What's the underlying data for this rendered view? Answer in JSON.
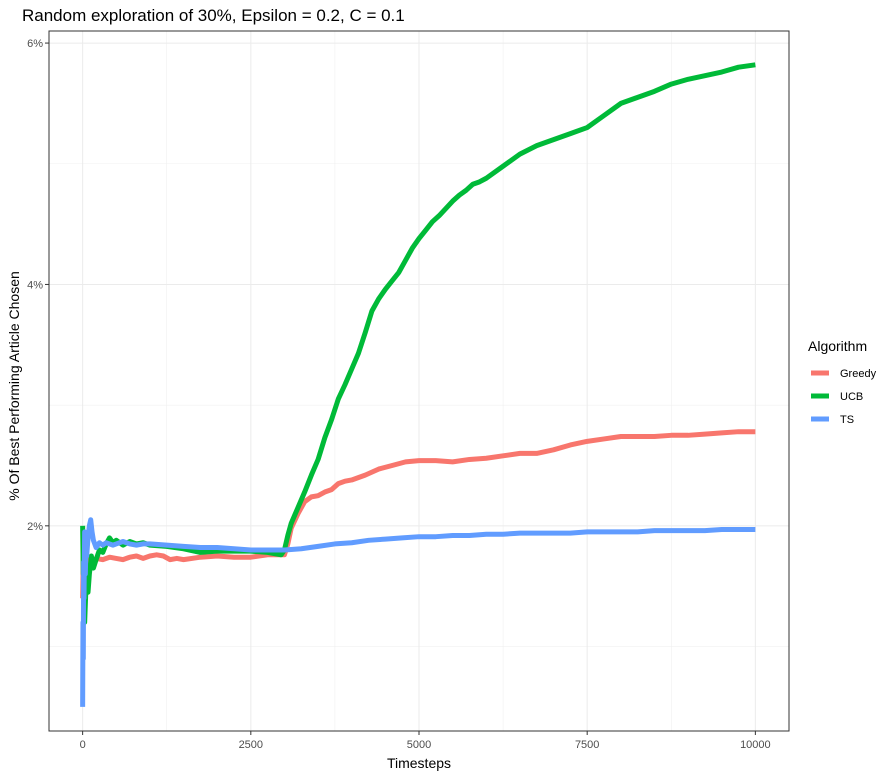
{
  "chart_data": {
    "type": "line",
    "title": "Random exploration of 30%, Epsilon = 0.2, C = 0.1",
    "xlabel": "Timesteps",
    "ylabel": "% Of Best Performing Article Chosen",
    "xlim": [
      -500,
      10500
    ],
    "ylim": [
      0.3,
      6.1
    ],
    "x_ticks": [
      0,
      2500,
      5000,
      7500,
      10000
    ],
    "x_tick_labels": [
      "0",
      "2500",
      "5000",
      "7500",
      "10000"
    ],
    "y_ticks": [
      2,
      4,
      6
    ],
    "y_tick_labels": [
      "2%",
      "4%",
      "6%"
    ],
    "grid": true,
    "legend": {
      "title": "Algorithm",
      "position": "right"
    },
    "series": [
      {
        "name": "Greedy",
        "color": "#F8766D",
        "x": [
          0,
          10,
          20,
          40,
          60,
          100,
          150,
          200,
          300,
          400,
          500,
          600,
          700,
          800,
          900,
          1000,
          1100,
          1200,
          1300,
          1400,
          1500,
          1750,
          2000,
          2250,
          2500,
          2750,
          3000,
          3050,
          3100,
          3200,
          3300,
          3400,
          3500,
          3600,
          3700,
          3800,
          3900,
          4000,
          4200,
          4400,
          4600,
          4800,
          5000,
          5250,
          5500,
          5750,
          6000,
          6250,
          6500,
          6750,
          7000,
          7250,
          7500,
          7750,
          8000,
          8250,
          8500,
          8750,
          9000,
          9250,
          9500,
          9750,
          10000
        ],
        "y": [
          1.4,
          1.75,
          1.6,
          1.78,
          1.7,
          1.74,
          1.71,
          1.73,
          1.72,
          1.74,
          1.73,
          1.72,
          1.74,
          1.75,
          1.73,
          1.75,
          1.76,
          1.75,
          1.72,
          1.73,
          1.72,
          1.74,
          1.75,
          1.74,
          1.74,
          1.76,
          1.76,
          1.85,
          1.98,
          2.1,
          2.2,
          2.24,
          2.25,
          2.28,
          2.3,
          2.35,
          2.37,
          2.38,
          2.42,
          2.47,
          2.5,
          2.53,
          2.54,
          2.54,
          2.53,
          2.55,
          2.56,
          2.58,
          2.6,
          2.6,
          2.63,
          2.67,
          2.7,
          2.72,
          2.74,
          2.74,
          2.74,
          2.75,
          2.75,
          2.76,
          2.77,
          2.78,
          2.78
        ]
      },
      {
        "name": "UCB",
        "color": "#00BA38",
        "x": [
          0,
          10,
          20,
          30,
          50,
          80,
          100,
          130,
          160,
          200,
          250,
          300,
          350,
          400,
          450,
          500,
          600,
          700,
          800,
          900,
          1000,
          1250,
          1500,
          1750,
          2000,
          2250,
          2500,
          2750,
          2950,
          3000,
          3050,
          3100,
          3200,
          3300,
          3400,
          3500,
          3600,
          3700,
          3800,
          3900,
          4000,
          4100,
          4200,
          4300,
          4400,
          4500,
          4600,
          4700,
          4800,
          4900,
          5000,
          5100,
          5200,
          5300,
          5400,
          5500,
          5600,
          5700,
          5800,
          5900,
          6000,
          6250,
          6500,
          6750,
          7000,
          7250,
          7500,
          7750,
          8000,
          8250,
          8500,
          8750,
          9000,
          9250,
          9500,
          9750,
          10000
        ],
        "y": [
          2.0,
          1.6,
          1.85,
          1.2,
          1.5,
          1.45,
          1.6,
          1.75,
          1.65,
          1.72,
          1.8,
          1.78,
          1.85,
          1.9,
          1.86,
          1.88,
          1.84,
          1.87,
          1.85,
          1.86,
          1.84,
          1.83,
          1.81,
          1.78,
          1.79,
          1.79,
          1.79,
          1.78,
          1.76,
          1.8,
          1.92,
          2.02,
          2.15,
          2.28,
          2.42,
          2.55,
          2.73,
          2.88,
          3.05,
          3.17,
          3.3,
          3.43,
          3.6,
          3.78,
          3.88,
          3.96,
          4.03,
          4.1,
          4.2,
          4.3,
          4.38,
          4.45,
          4.52,
          4.57,
          4.63,
          4.69,
          4.74,
          4.78,
          4.83,
          4.85,
          4.88,
          4.98,
          5.08,
          5.15,
          5.2,
          5.25,
          5.3,
          5.4,
          5.5,
          5.55,
          5.6,
          5.66,
          5.7,
          5.73,
          5.76,
          5.8,
          5.82
        ]
      },
      {
        "name": "TS",
        "color": "#619CFF",
        "x": [
          0,
          5,
          10,
          15,
          20,
          30,
          40,
          50,
          60,
          80,
          100,
          120,
          140,
          160,
          180,
          200,
          250,
          300,
          350,
          400,
          450,
          500,
          600,
          700,
          800,
          900,
          1000,
          1250,
          1500,
          1750,
          2000,
          2250,
          2500,
          2750,
          3000,
          3250,
          3500,
          3750,
          4000,
          4250,
          4500,
          4750,
          5000,
          5250,
          5500,
          5750,
          6000,
          6250,
          6500,
          6750,
          7000,
          7250,
          7500,
          7750,
          8000,
          8250,
          8500,
          8750,
          9000,
          9250,
          9500,
          9750,
          10000
        ],
        "y": [
          0.5,
          1.2,
          0.9,
          1.7,
          1.4,
          1.95,
          1.6,
          1.85,
          1.75,
          1.9,
          2.0,
          2.05,
          1.95,
          1.88,
          1.85,
          1.82,
          1.86,
          1.84,
          1.86,
          1.85,
          1.84,
          1.85,
          1.87,
          1.85,
          1.84,
          1.85,
          1.85,
          1.84,
          1.83,
          1.82,
          1.82,
          1.81,
          1.8,
          1.8,
          1.8,
          1.81,
          1.83,
          1.85,
          1.86,
          1.88,
          1.89,
          1.9,
          1.91,
          1.91,
          1.92,
          1.92,
          1.93,
          1.93,
          1.94,
          1.94,
          1.94,
          1.94,
          1.95,
          1.95,
          1.95,
          1.95,
          1.96,
          1.96,
          1.96,
          1.96,
          1.97,
          1.97,
          1.97
        ]
      }
    ]
  }
}
